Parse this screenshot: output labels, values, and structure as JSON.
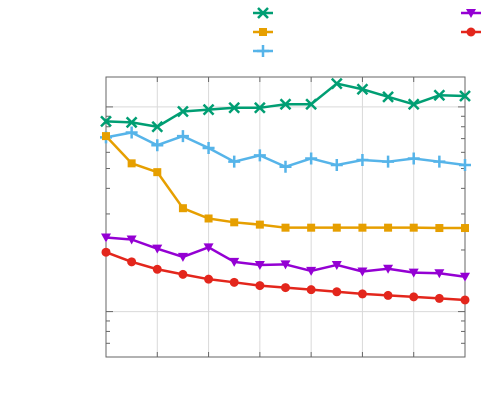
{
  "chart_data": {
    "type": "line",
    "title": "",
    "xlabel": "",
    "ylabel": "",
    "x": [
      0,
      1,
      2,
      3,
      4,
      5,
      6,
      7,
      8,
      9,
      10,
      11,
      12,
      13,
      14
    ],
    "xlim": [
      0,
      14
    ],
    "y_scale": "log",
    "ylim": [
      0.06,
      1.4
    ],
    "grid": true,
    "legend_position": "top",
    "series": [
      {
        "color": "#009e73",
        "marker": "x",
        "values": [
          0.85,
          0.84,
          0.8,
          0.95,
          0.97,
          0.99,
          0.99,
          1.03,
          1.03,
          1.3,
          1.22,
          1.12,
          1.03,
          1.14,
          1.13
        ]
      },
      {
        "color": "#56b4e9",
        "marker": "plus",
        "values": [
          0.71,
          0.75,
          0.65,
          0.72,
          0.63,
          0.54,
          0.58,
          0.51,
          0.56,
          0.52,
          0.55,
          0.54,
          0.56,
          0.54,
          0.52
        ]
      },
      {
        "color": "#e69f00",
        "marker": "square",
        "values": [
          0.72,
          0.53,
          0.48,
          0.32,
          0.285,
          0.273,
          0.266,
          0.257,
          0.257,
          0.257,
          0.257,
          0.257,
          0.257,
          0.256,
          0.256
        ]
      },
      {
        "color": "#9400d3",
        "marker": "triangle-down",
        "values": [
          0.23,
          0.225,
          0.203,
          0.185,
          0.206,
          0.175,
          0.169,
          0.17,
          0.158,
          0.169,
          0.157,
          0.162,
          0.155,
          0.154,
          0.148
        ]
      },
      {
        "color": "#e3261c",
        "marker": "circle",
        "values": [
          0.195,
          0.175,
          0.161,
          0.152,
          0.144,
          0.139,
          0.134,
          0.131,
          0.128,
          0.125,
          0.122,
          0.12,
          0.118,
          0.116,
          0.114
        ]
      }
    ]
  }
}
